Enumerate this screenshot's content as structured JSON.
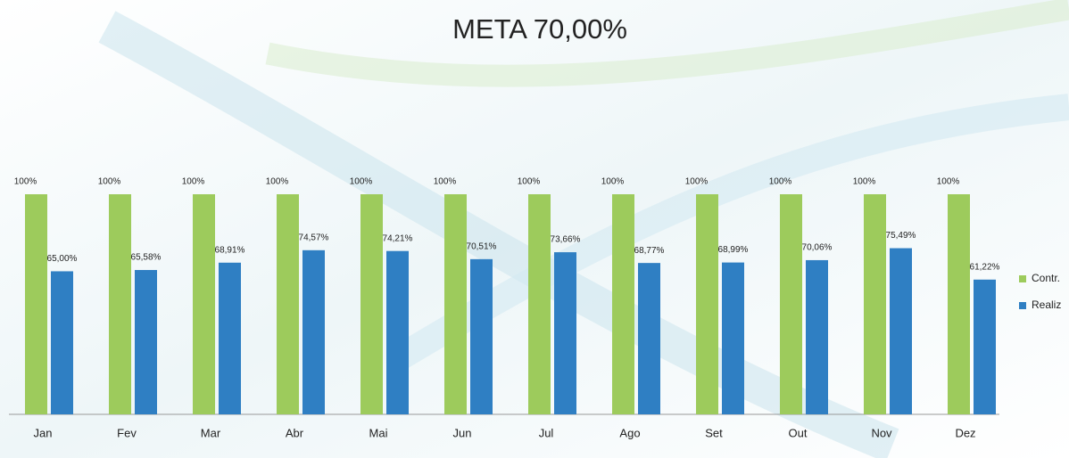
{
  "chart_data": {
    "type": "bar",
    "title": "META 70,00%",
    "categories": [
      "Jan",
      "Fev",
      "Mar",
      "Abr",
      "Mai",
      "Jun",
      "Jul",
      "Ago",
      "Set",
      "Out",
      "Nov",
      "Dez"
    ],
    "series": [
      {
        "name": "Contr.",
        "color": "#9dcb5c",
        "values": [
          100,
          100,
          100,
          100,
          100,
          100,
          100,
          100,
          100,
          100,
          100,
          100
        ],
        "value_labels": [
          "100%",
          "100%",
          "100%",
          "100%",
          "100%",
          "100%",
          "100%",
          "100%",
          "100%",
          "100%",
          "100%",
          "100%"
        ]
      },
      {
        "name": "Realiz",
        "color": "#2f7fc3",
        "values": [
          65.0,
          65.58,
          68.91,
          74.57,
          74.21,
          70.51,
          73.66,
          68.77,
          68.99,
          70.06,
          75.49,
          61.22
        ],
        "value_labels": [
          "65,00%",
          "65,58%",
          "68,91%",
          "74,57%",
          "74,21%",
          "70,51%",
          "73,66%",
          "68,77%",
          "68,99%",
          "70,06%",
          "75,49%",
          "61,22%"
        ]
      }
    ],
    "ylim": [
      0,
      100
    ],
    "legend": "right"
  }
}
